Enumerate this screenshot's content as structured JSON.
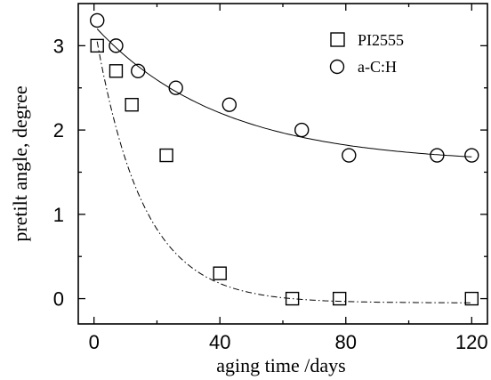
{
  "chart_data": {
    "type": "scatter",
    "xlabel": "aging time /days",
    "ylabel": "pretilt angle, degree",
    "xlim": [
      -5,
      125
    ],
    "ylim": [
      -0.3,
      3.5
    ],
    "xticks": [
      "0",
      "40",
      "80",
      "120"
    ],
    "yticks": [
      "0",
      "1",
      "2",
      "3"
    ],
    "grid": false,
    "legend_position": "top-right",
    "series": [
      {
        "name": "PI2555",
        "marker": "square",
        "x": [
          1,
          7,
          12,
          23,
          40,
          63,
          78,
          120
        ],
        "y": [
          3.0,
          2.7,
          2.3,
          1.7,
          0.3,
          0.0,
          0.0,
          0.0
        ],
        "fit": {
          "style": "dash-dot",
          "model": "exponential decay",
          "y0": 3.05,
          "A": -0.05,
          "tau": 15
        }
      },
      {
        "name": "a-C:H",
        "marker": "circle",
        "x": [
          1,
          7,
          14,
          26,
          43,
          66,
          81,
          109,
          120
        ],
        "y": [
          3.3,
          3.0,
          2.7,
          2.5,
          2.3,
          2.0,
          1.7,
          1.7,
          1.7
        ],
        "fit": {
          "style": "solid",
          "model": "exponential decay",
          "y0": 3.2,
          "A": 1.6,
          "tau": 40
        }
      }
    ]
  }
}
